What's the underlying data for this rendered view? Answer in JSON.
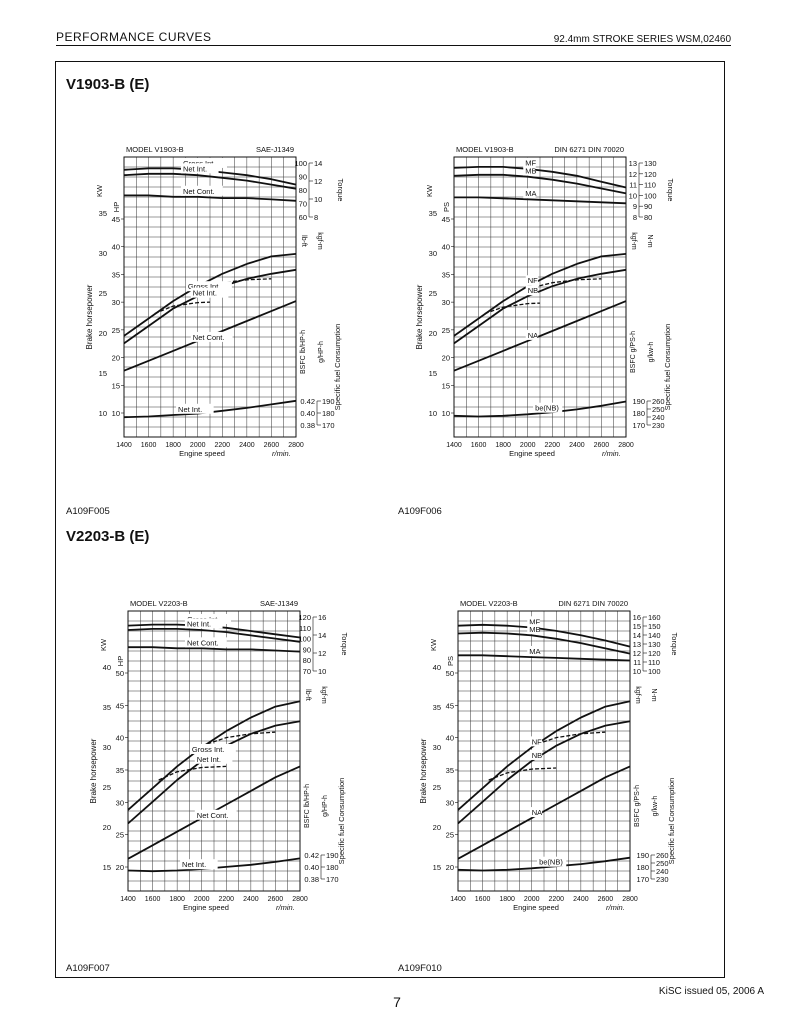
{
  "header": {
    "left": "PERFORMANCE CURVES",
    "right": "92.4mm STROKE SERIES WSM,02460"
  },
  "sections": [
    {
      "title": "V1903-B (E)"
    },
    {
      "title": "V2203-B (E)"
    }
  ],
  "footer": {
    "issued": "KiSC issued 05, 2006 A",
    "page": "7"
  },
  "chart_data": [
    {
      "type": "line",
      "id": "A109F005",
      "code": "A109F005",
      "model": "MODEL V1903-B",
      "standard": "SAE-J1349",
      "xlabel": "Engine speed",
      "xunit": "r/min.",
      "x": [
        1400,
        1600,
        1800,
        2000,
        2200,
        2400,
        2600,
        2800
      ],
      "power_title": "Brake horsepower",
      "power_units": [
        "KW",
        "HP"
      ],
      "torque_title": "Torque",
      "torque_units": [
        "lb-ft",
        "kgf-m"
      ],
      "bsfc_title": "Specific fuel Consumption",
      "bsfc_units": [
        "BSFC lb/HP-h",
        "g/HP-h"
      ],
      "hp_ticks": [
        "10",
        "15",
        "20",
        "25",
        "30",
        "35",
        "40",
        "45"
      ],
      "kw_ticks": [
        "10",
        "15",
        "20",
        "25",
        "30",
        "35"
      ],
      "torque_ticks_a": [
        "60",
        "70",
        "80",
        "90",
        "100"
      ],
      "torque_ticks_b": [
        "8",
        "10",
        "12",
        "14"
      ],
      "bsfc_ticks_a": [
        "0.38",
        "0.40",
        "0.42"
      ],
      "bsfc_ticks_b": [
        "170",
        "180",
        "190"
      ],
      "curve_labels": {
        "torque_gross": "Gross Int.",
        "torque_net": "Net Int.",
        "torque_cont": "Net Cont.",
        "power_gross": "Gross Int.",
        "power_net": "Net Int.",
        "power_cont": "Net Cont.",
        "bsfc": "Net Int."
      },
      "series": [
        {
          "name": "Gross Int.",
          "group": "torque",
          "style": "solid",
          "values": [
            95,
            96,
            96,
            95,
            93,
            91,
            88,
            84
          ]
        },
        {
          "name": "Net Int.",
          "group": "torque",
          "style": "solid",
          "values": [
            91,
            92,
            92,
            91,
            89,
            87,
            84,
            81
          ]
        },
        {
          "name": "Net Cont.",
          "group": "torque",
          "style": "solid",
          "values": [
            76,
            76,
            75,
            75,
            74,
            74,
            73,
            72
          ]
        },
        {
          "name": "Gross Int.",
          "group": "power",
          "style": "solid",
          "values": [
            25.5,
            29,
            32.5,
            35.5,
            38,
            40,
            41.5,
            42
          ]
        },
        {
          "name": "Net Int.",
          "group": "power",
          "style": "solid",
          "values": [
            24,
            27.5,
            31,
            33.5,
            35.5,
            37,
            38,
            38.8
          ]
        },
        {
          "name": "Net Cont.",
          "group": "power",
          "style": "solid",
          "values": [
            18.5,
            20.5,
            22.5,
            24.5,
            26.5,
            28.5,
            30.5,
            32.5
          ]
        },
        {
          "name": "",
          "group": "power",
          "style": "dashed",
          "x": [
            1650,
            1800,
            2000,
            2100
          ],
          "values": [
            30,
            31.5,
            32.2,
            32.3
          ]
        },
        {
          "name": "",
          "group": "power",
          "style": "dashed",
          "x": [
            2000,
            2200,
            2400,
            2600
          ],
          "values": [
            35,
            36.2,
            36.8,
            37
          ]
        },
        {
          "name": "Net Int.",
          "group": "bsfc",
          "style": "solid",
          "values": [
            10.6,
            10.7,
            10.9,
            11.1,
            11.5,
            11.9,
            12.4,
            12.9
          ]
        }
      ]
    },
    {
      "type": "line",
      "id": "A109F006",
      "code": "A109F006",
      "model": "MODEL V1903-B",
      "standard": "DIN 6271   DIN 70020",
      "xlabel": "Engine speed",
      "xunit": "r/min.",
      "x": [
        1400,
        1600,
        1800,
        2000,
        2200,
        2400,
        2600,
        2800
      ],
      "power_title": "Brake horsepower",
      "power_units": [
        "KW",
        "PS"
      ],
      "torque_title": "Torque",
      "torque_units": [
        "kgf-m",
        "N-m"
      ],
      "bsfc_title": "Specific fuel Consumption",
      "bsfc_units": [
        "BSFC g/PS-h",
        "g/kw-h"
      ],
      "hp_ticks": [
        "10",
        "15",
        "20",
        "25",
        "30",
        "35",
        "40",
        "45"
      ],
      "kw_ticks": [
        "10",
        "15",
        "20",
        "25",
        "30",
        "35"
      ],
      "torque_ticks_a": [
        "8",
        "9",
        "10",
        "11",
        "12",
        "13"
      ],
      "torque_ticks_b": [
        "80",
        "90",
        "100",
        "110",
        "120",
        "130"
      ],
      "bsfc_ticks_a": [
        "170",
        "180",
        "190"
      ],
      "bsfc_ticks_b": [
        "230",
        "240",
        "250",
        "260"
      ],
      "curve_labels": {
        "torque_gross": "MF",
        "torque_net": "MB",
        "torque_cont": "MA",
        "power_gross": "NF",
        "power_net": "NB",
        "power_cont": "NA",
        "bsfc": "be(NB)"
      },
      "series": [
        {
          "name": "MF",
          "group": "torque",
          "style": "solid",
          "values": [
            13,
            13.1,
            13.1,
            12.9,
            12.6,
            12.2,
            11.6,
            11
          ]
        },
        {
          "name": "MB",
          "group": "torque",
          "style": "solid",
          "values": [
            12.2,
            12.3,
            12.3,
            12.1,
            11.8,
            11.4,
            10.9,
            10.4
          ]
        },
        {
          "name": "MA",
          "group": "torque",
          "style": "solid",
          "values": [
            10,
            10,
            9.9,
            9.8,
            9.7,
            9.6,
            9.5,
            9.4
          ]
        },
        {
          "name": "NF",
          "group": "power",
          "style": "solid",
          "values": [
            25.5,
            29,
            32.5,
            35.5,
            38,
            40,
            41.5,
            42
          ]
        },
        {
          "name": "NB",
          "group": "power",
          "style": "solid",
          "values": [
            24,
            27.5,
            31,
            33.5,
            35.5,
            37,
            38,
            38.8
          ]
        },
        {
          "name": "NA",
          "group": "power",
          "style": "solid",
          "values": [
            18.5,
            20.5,
            22.5,
            24.5,
            26.5,
            28.5,
            30.5,
            32.5
          ]
        },
        {
          "name": "",
          "group": "power",
          "style": "dashed",
          "x": [
            1650,
            1800,
            2000,
            2100
          ],
          "values": [
            30,
            31.3,
            32,
            32.1
          ]
        },
        {
          "name": "",
          "group": "power",
          "style": "dashed",
          "x": [
            2000,
            2200,
            2400,
            2600
          ],
          "values": [
            35,
            36.2,
            36.8,
            37
          ]
        },
        {
          "name": "be(NB)",
          "group": "bsfc",
          "style": "solid",
          "values": [
            10.8,
            10.7,
            10.8,
            11,
            11.3,
            11.7,
            12.2,
            12.8
          ]
        }
      ]
    },
    {
      "type": "line",
      "id": "A109F007",
      "code": "A109F007",
      "model": "MODEL V2203-B",
      "standard": "SAE-J1349",
      "xlabel": "Engine speed",
      "xunit": "r/min.",
      "x": [
        1400,
        1600,
        1800,
        2000,
        2200,
        2400,
        2600,
        2800
      ],
      "power_title": "Brake horsepower",
      "power_units": [
        "KW",
        "HP"
      ],
      "torque_title": "Torque",
      "torque_units": [
        "lb-ft",
        "kgf-m"
      ],
      "bsfc_title": "Specific fuel Consumption",
      "bsfc_units": [
        "BSFC lb/HP-h",
        "g/HP-h"
      ],
      "hp_ticks": [
        "20",
        "25",
        "30",
        "35",
        "40",
        "45",
        "50"
      ],
      "kw_ticks": [
        "15",
        "20",
        "25",
        "30",
        "35",
        "40"
      ],
      "torque_ticks_a": [
        "70",
        "80",
        "90",
        "100",
        "110",
        "120"
      ],
      "torque_ticks_b": [
        "10",
        "12",
        "14",
        "16"
      ],
      "bsfc_ticks_a": [
        "0.38",
        "0.40",
        "0.42"
      ],
      "bsfc_ticks_b": [
        "170",
        "180",
        "190"
      ],
      "curve_labels": {
        "torque_gross": "Gross Int.",
        "torque_net": "Net Int.",
        "torque_cont": "Net Cont.",
        "power_gross": "Gross Int.",
        "power_net": "Net Int.",
        "power_cont": "Net Cont.",
        "bsfc": "Net Int."
      },
      "series": [
        {
          "name": "Gross Int.",
          "group": "torque",
          "style": "solid",
          "values": [
            112,
            113,
            113,
            112,
            110,
            107,
            104,
            101
          ]
        },
        {
          "name": "Net Int.",
          "group": "torque",
          "style": "solid",
          "values": [
            108,
            109,
            109,
            108,
            106,
            103,
            100,
            97
          ]
        },
        {
          "name": "Net Cont.",
          "group": "torque",
          "style": "solid",
          "values": [
            92,
            92,
            91,
            91,
            90,
            90,
            89,
            88
          ]
        },
        {
          "name": "Gross Int.",
          "group": "power",
          "style": "solid",
          "values": [
            30.5,
            34.5,
            38.5,
            42,
            45,
            47.5,
            49.5,
            50.5
          ]
        },
        {
          "name": "Net Int.",
          "group": "power",
          "style": "solid",
          "values": [
            28,
            32,
            36,
            39.5,
            42.3,
            44.5,
            46,
            46.8
          ]
        },
        {
          "name": "Net Cont.",
          "group": "power",
          "style": "solid",
          "values": [
            21.5,
            24,
            26.5,
            29,
            31.5,
            34,
            36.5,
            38.5
          ]
        },
        {
          "name": "",
          "group": "power",
          "style": "dashed",
          "x": [
            1650,
            1800,
            2000,
            2200
          ],
          "values": [
            36,
            37.5,
            38.3,
            38.5
          ]
        },
        {
          "name": "",
          "group": "power",
          "style": "dashed",
          "x": [
            2000,
            2200,
            2400,
            2600
          ],
          "values": [
            42.3,
            43.8,
            44.5,
            44.8
          ]
        },
        {
          "name": "Net Int.",
          "group": "bsfc",
          "style": "solid",
          "values": [
            15.7,
            15.6,
            15.7,
            15.9,
            16.2,
            16.5,
            16.9,
            17.4
          ]
        }
      ]
    },
    {
      "type": "line",
      "id": "A109F010",
      "code": "A109F010",
      "model": "MODEL V2203-B",
      "standard": "DIN 6271   DIN 70020",
      "xlabel": "Engine speed",
      "xunit": "r/min.",
      "x": [
        1400,
        1600,
        1800,
        2000,
        2200,
        2400,
        2600,
        2800
      ],
      "power_title": "Brake horsepower",
      "power_units": [
        "KW",
        "PS"
      ],
      "torque_title": "Torque",
      "torque_units": [
        "kgf-m",
        "N-m"
      ],
      "bsfc_title": "Specific fuel Consumption",
      "bsfc_units": [
        "BSFC g/PS-h",
        "g/kw-h"
      ],
      "hp_ticks": [
        "20",
        "25",
        "30",
        "35",
        "40",
        "45",
        "50"
      ],
      "kw_ticks": [
        "15",
        "20",
        "25",
        "30",
        "35",
        "40"
      ],
      "torque_ticks_a": [
        "10",
        "11",
        "12",
        "13",
        "14",
        "15",
        "16"
      ],
      "torque_ticks_b": [
        "100",
        "110",
        "120",
        "130",
        "140",
        "150",
        "160"
      ],
      "bsfc_ticks_a": [
        "170",
        "180",
        "190"
      ],
      "bsfc_ticks_b": [
        "230",
        "240",
        "250",
        "260"
      ],
      "curve_labels": {
        "torque_gross": "MF",
        "torque_net": "MB",
        "torque_cont": "MA",
        "power_gross": "NF",
        "power_net": "NB",
        "power_cont": "NA",
        "bsfc": "be(NB)"
      },
      "series": [
        {
          "name": "MF",
          "group": "torque",
          "style": "solid",
          "values": [
            15.2,
            15.3,
            15.2,
            15,
            14.6,
            14.1,
            13.5,
            12.8
          ]
        },
        {
          "name": "MB",
          "group": "torque",
          "style": "solid",
          "values": [
            14.3,
            14.4,
            14.3,
            14.1,
            13.7,
            13.2,
            12.6,
            12
          ]
        },
        {
          "name": "MA",
          "group": "torque",
          "style": "solid",
          "values": [
            11.8,
            11.8,
            11.7,
            11.6,
            11.5,
            11.4,
            11.3,
            11.2
          ]
        },
        {
          "name": "NF",
          "group": "power",
          "style": "solid",
          "values": [
            30.5,
            34.5,
            38.5,
            42,
            45,
            47.5,
            49.5,
            50.5
          ]
        },
        {
          "name": "NB",
          "group": "power",
          "style": "solid",
          "values": [
            28,
            32,
            36,
            39.5,
            42.3,
            44.5,
            46,
            46.8
          ]
        },
        {
          "name": "NA",
          "group": "power",
          "style": "solid",
          "values": [
            21.5,
            24,
            26.5,
            29,
            31.5,
            34,
            36.5,
            38.5
          ]
        },
        {
          "name": "",
          "group": "power",
          "style": "dashed",
          "x": [
            1650,
            1800,
            2000,
            2200
          ],
          "values": [
            36,
            37.3,
            38,
            38.2
          ]
        },
        {
          "name": "",
          "group": "power",
          "style": "dashed",
          "x": [
            2000,
            2200,
            2400,
            2600
          ],
          "values": [
            42.3,
            43.8,
            44.5,
            44.8
          ]
        },
        {
          "name": "be(NB)",
          "group": "bsfc",
          "style": "solid",
          "values": [
            15.8,
            15.7,
            15.8,
            16,
            16.3,
            16.6,
            17,
            17.5
          ]
        }
      ]
    }
  ]
}
